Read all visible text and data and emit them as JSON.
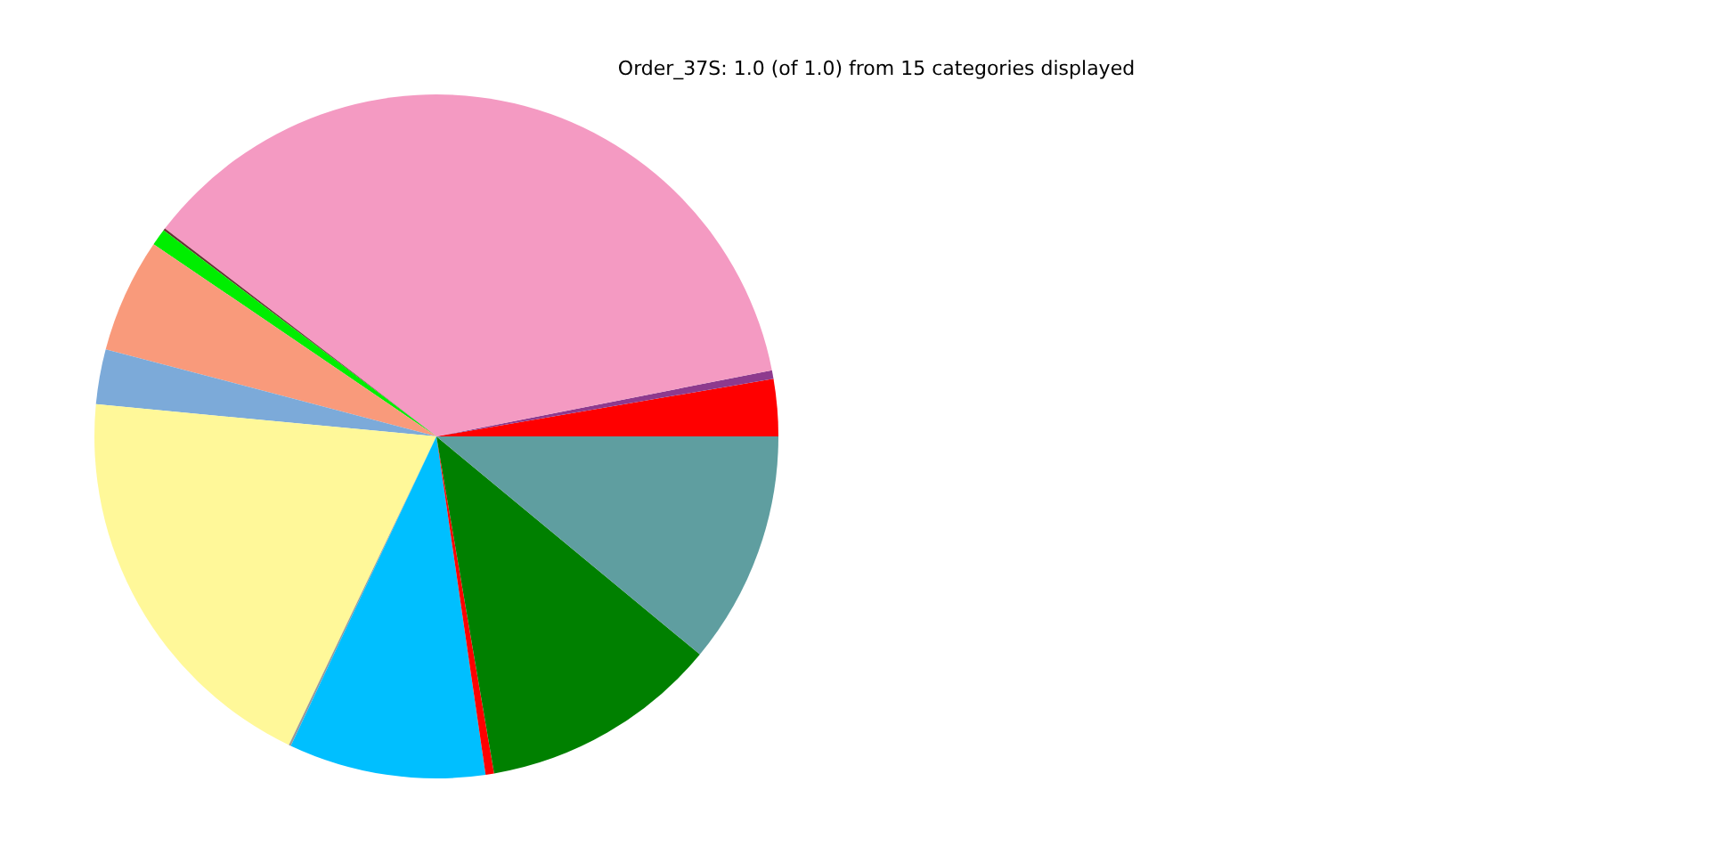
{
  "chart_data": {
    "type": "pie",
    "title": "Order_37S: 1.0 (of 1.0) from 15 categories displayed",
    "categories": [
      null,
      null,
      null,
      null,
      null,
      null,
      null,
      null,
      null,
      null,
      null,
      null,
      null
    ],
    "values": [
      2.7,
      0.4,
      36.5,
      0.1,
      0.8,
      5.4,
      2.6,
      19.4,
      0.1,
      9.3,
      0.4,
      11.3,
      11.0
    ],
    "colors": [
      "#ff0000",
      "#8e3a8e",
      "#f49ac2",
      "#663333",
      "#00ee00",
      "#f99a7b",
      "#7caad9",
      "#fff899",
      "#999999",
      "#00bfff",
      "#ff0000",
      "#008000",
      "#5f9ea0"
    ]
  }
}
